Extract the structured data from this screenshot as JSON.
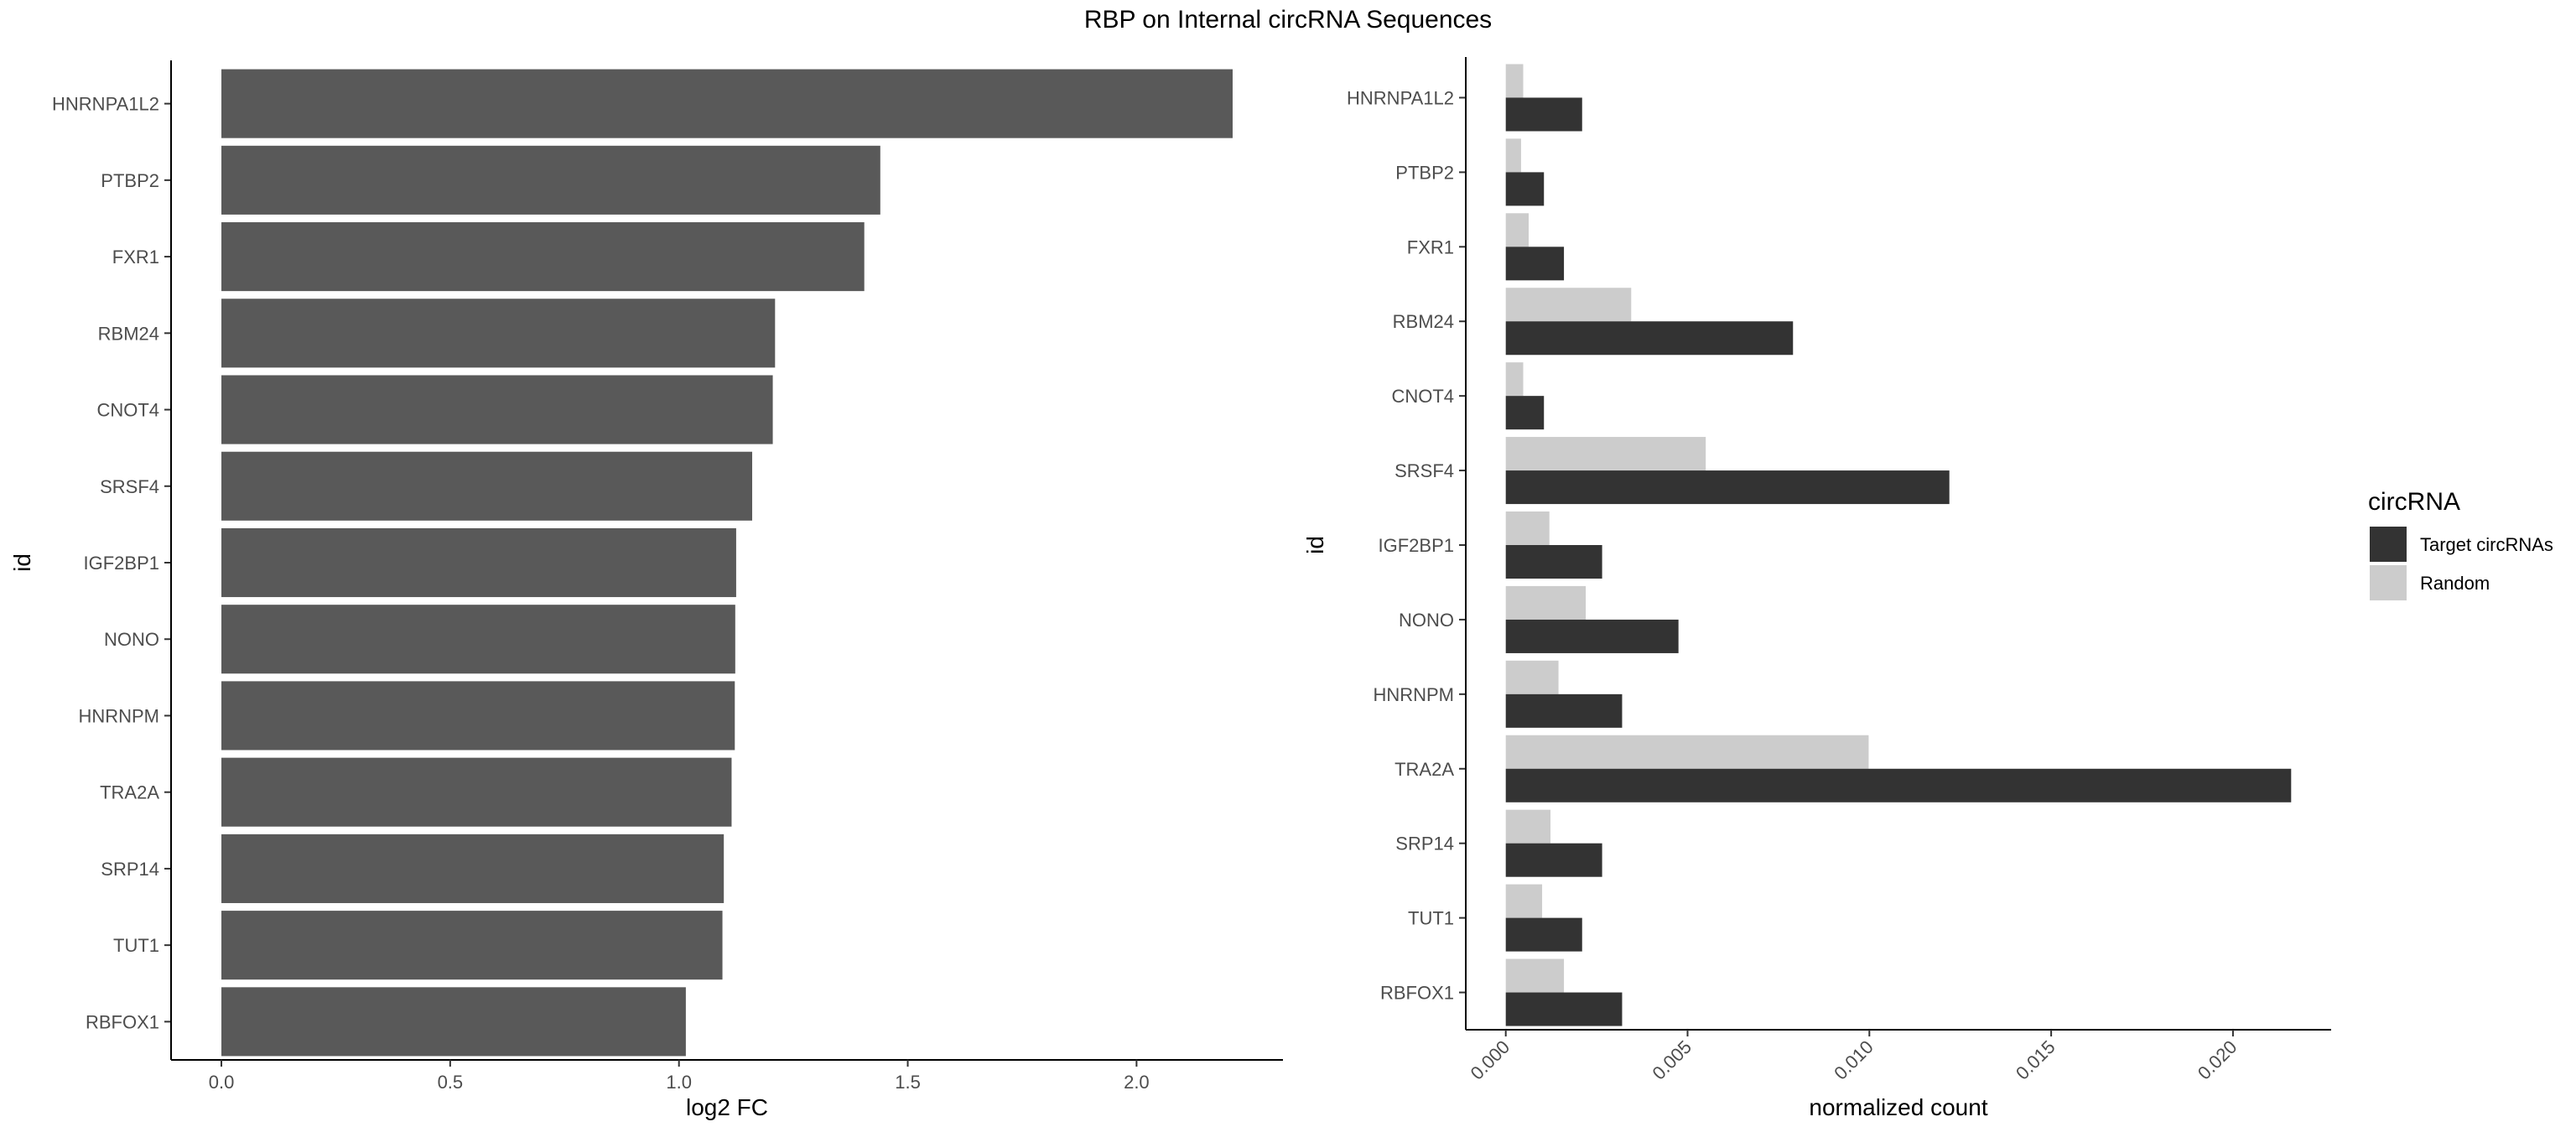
{
  "title": "RBP on Internal circRNA Sequences",
  "chart_data": [
    {
      "type": "bar",
      "orientation": "horizontal",
      "categories": [
        "HNRNPA1L2",
        "PTBP2",
        "FXR1",
        "RBM24",
        "CNOT4",
        "SRSF4",
        "IGF2BP1",
        "NONO",
        "HNRNPM",
        "TRA2A",
        "SRP14",
        "TUT1",
        "RBFOX1"
      ],
      "values": [
        2.21,
        1.44,
        1.405,
        1.21,
        1.205,
        1.16,
        1.125,
        1.123,
        1.122,
        1.115,
        1.098,
        1.095,
        1.015
      ],
      "xlabel": "log2 FC",
      "ylabel": "id",
      "xticks": [
        "0.0",
        "0.5",
        "1.0",
        "1.5",
        "2.0"
      ],
      "xlim": [
        -0.11,
        2.32
      ],
      "grid": false,
      "colors": {
        "bar": "#595959"
      }
    },
    {
      "type": "bar",
      "orientation": "horizontal",
      "categories": [
        "HNRNPA1L2",
        "PTBP2",
        "FXR1",
        "RBM24",
        "CNOT4",
        "SRSF4",
        "IGF2BP1",
        "NONO",
        "HNRNPM",
        "TRA2A",
        "SRP14",
        "TUT1",
        "RBFOX1"
      ],
      "series": [
        {
          "name": "Target circRNAs",
          "color": "#333333",
          "values": [
            0.0021,
            0.00105,
            0.0016,
            0.0079,
            0.00105,
            0.0122,
            0.00265,
            0.00475,
            0.0032,
            0.0216,
            0.00265,
            0.0021,
            0.0032
          ]
        },
        {
          "name": "Random",
          "color": "#cccccc",
          "values": [
            0.00048,
            0.00042,
            0.00063,
            0.00345,
            0.00048,
            0.0055,
            0.0012,
            0.0022,
            0.00145,
            0.00998,
            0.00123,
            0.001,
            0.0016
          ]
        }
      ],
      "xlabel": "normalized count",
      "ylabel": "id",
      "xticks": [
        "0.000",
        "0.005",
        "0.010",
        "0.015",
        "0.020"
      ],
      "xlim": [
        -0.0011,
        0.0227
      ],
      "grid": false,
      "legend": {
        "title": "circRNA",
        "position": "right"
      }
    }
  ]
}
